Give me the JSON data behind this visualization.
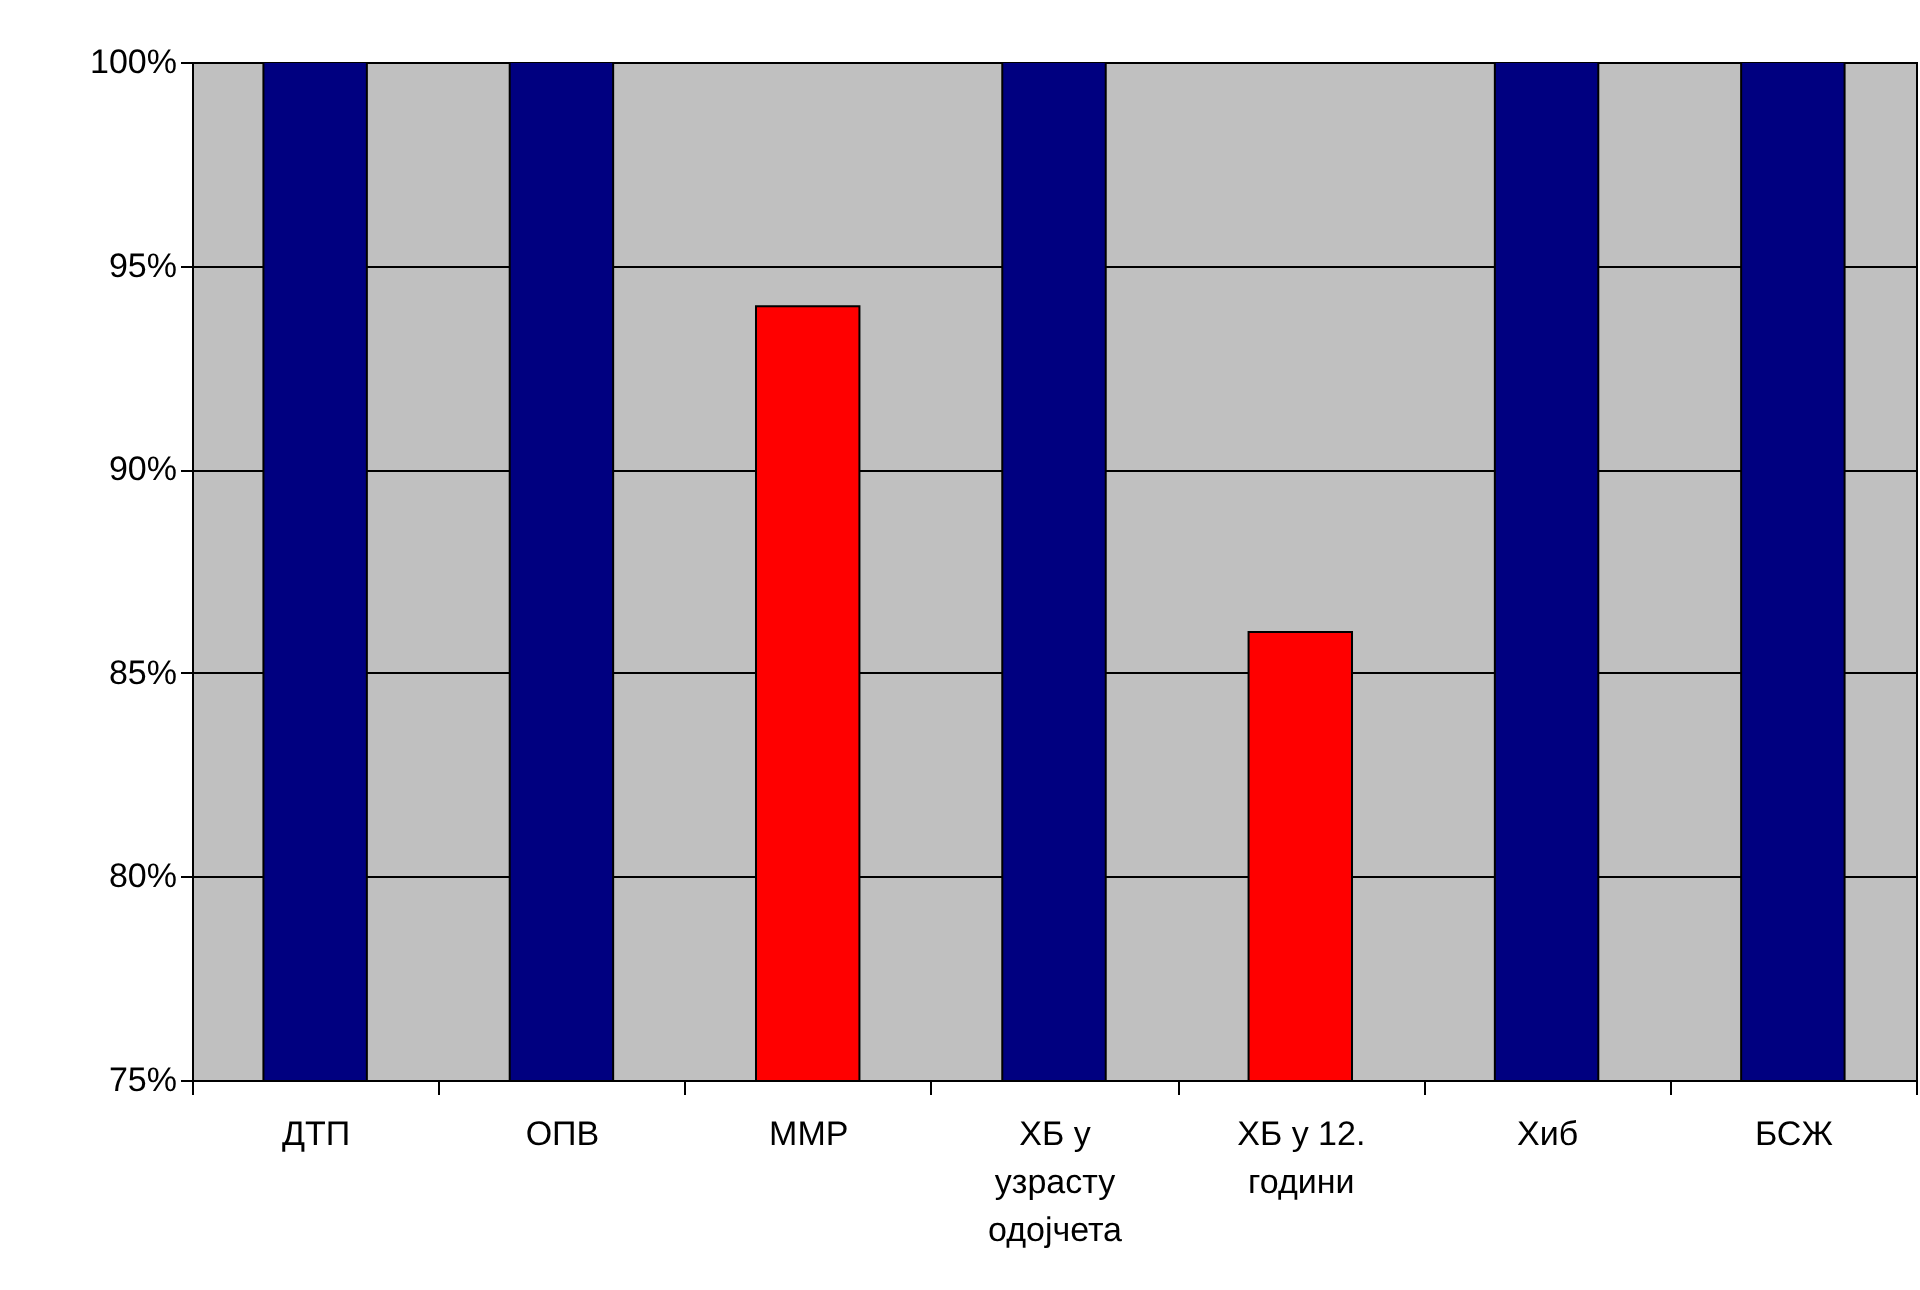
{
  "chart_data": {
    "type": "bar",
    "categories": [
      "ДТП",
      "ОПВ",
      "ММР",
      "ХБ у узрасту одојчета",
      "ХБ у 12. години",
      "Хиб",
      "БСЖ"
    ],
    "values": [
      100,
      100,
      94,
      100,
      86,
      100,
      100
    ],
    "colors": [
      "#000080",
      "#000080",
      "#ff0000",
      "#000080",
      "#ff0000",
      "#000080",
      "#000080"
    ],
    "ylim": [
      75,
      100
    ],
    "yticks": [
      {
        "value": 75,
        "label": "75%"
      },
      {
        "value": 80,
        "label": "80%"
      },
      {
        "value": 85,
        "label": "85%"
      },
      {
        "value": 90,
        "label": "90%"
      },
      {
        "value": 95,
        "label": "95%"
      },
      {
        "value": 100,
        "label": "100%"
      }
    ],
    "grid": "y"
  }
}
